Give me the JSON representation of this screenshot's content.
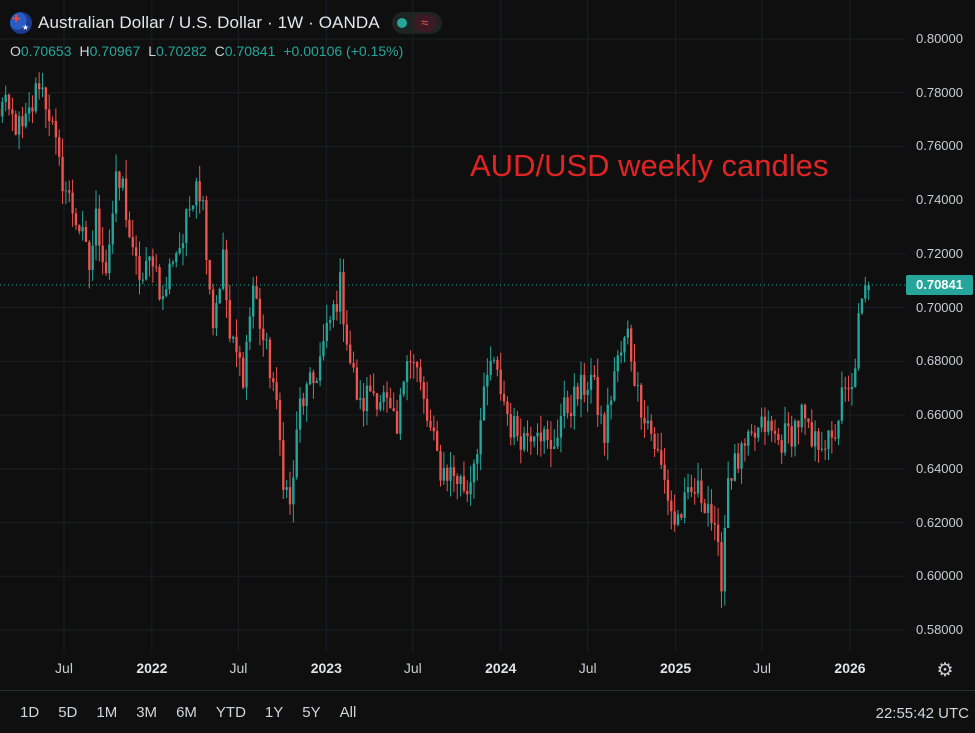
{
  "header": {
    "title": "Australian Dollar / U.S. Dollar · 1W · OANDA",
    "flag_icon": "aud-usd-flag-icon",
    "status_icon": "market-open-icon",
    "wave_icon": "wave-icon",
    "wave_glyph": "≈"
  },
  "ohlc": {
    "o_label": "O",
    "o_value": "0.70653",
    "h_label": "H",
    "h_value": "0.70967",
    "l_label": "L",
    "l_value": "0.70282",
    "c_label": "C",
    "c_value": "0.70841",
    "change": "+0.00106 (+0.15%)"
  },
  "annotation": "AUD/USD weekly candles",
  "last_price": "0.70841",
  "toolbar": {
    "ranges": [
      "1D",
      "5D",
      "1M",
      "3M",
      "6M",
      "YTD",
      "1Y",
      "5Y",
      "All"
    ],
    "clock": "22:55:42 UTC",
    "settings_icon": "gear-icon",
    "settings_glyph": "⚙"
  },
  "colors": {
    "background": "#0f0f0f",
    "up": "#26a69a",
    "down": "#ef5350",
    "grid": "#1c1f26",
    "annotation": "#e02424"
  },
  "chart_data": {
    "type": "candlestick",
    "title": "Australian Dollar / U.S. Dollar · 1W · OANDA",
    "interval": "1W",
    "y_ticks": [
      "0.80000",
      "0.78000",
      "0.76000",
      "0.74000",
      "0.72000",
      "0.70000",
      "0.68000",
      "0.66000",
      "0.64000",
      "0.62000",
      "0.60000",
      "0.58000"
    ],
    "y_range": [
      0.575,
      0.802
    ],
    "x_ticks": [
      "Jul",
      "2022",
      "Jul",
      "2023",
      "Jul",
      "2024",
      "Jul",
      "2025",
      "Jul",
      "2026"
    ],
    "x_ticks_bold": [
      "2022",
      "2023",
      "2024",
      "2025",
      "2026"
    ],
    "x_tick_dates": [
      "2021-07-01",
      "2022-01-01",
      "2022-07-01",
      "2023-01-01",
      "2023-07-01",
      "2024-01-01",
      "2024-07-01",
      "2025-01-01",
      "2025-07-01",
      "2026-01-01"
    ],
    "date_range": [
      "2021-02-08",
      "2026-02-09"
    ],
    "grid": true,
    "last_close": 0.70841,
    "close_path": [
      [
        "2021-02-08",
        0.772
      ],
      [
        "2021-02-22",
        0.775
      ],
      [
        "2021-03-15",
        0.77
      ],
      [
        "2021-04-05",
        0.765
      ],
      [
        "2021-04-26",
        0.775
      ],
      [
        "2021-05-10",
        0.785
      ],
      [
        "2021-05-31",
        0.773
      ],
      [
        "2021-06-21",
        0.752
      ],
      [
        "2021-07-12",
        0.74
      ],
      [
        "2021-08-02",
        0.73
      ],
      [
        "2021-08-23",
        0.715
      ],
      [
        "2021-09-06",
        0.733
      ],
      [
        "2021-09-27",
        0.715
      ],
      [
        "2021-10-18",
        0.745
      ],
      [
        "2021-11-01",
        0.745
      ],
      [
        "2021-11-22",
        0.718
      ],
      [
        "2021-12-13",
        0.71
      ],
      [
        "2022-01-03",
        0.72
      ],
      [
        "2022-01-24",
        0.702
      ],
      [
        "2022-02-14",
        0.72
      ],
      [
        "2022-03-07",
        0.725
      ],
      [
        "2022-04-04",
        0.75
      ],
      [
        "2022-04-18",
        0.738
      ],
      [
        "2022-05-09",
        0.695
      ],
      [
        "2022-05-30",
        0.718
      ],
      [
        "2022-06-13",
        0.688
      ],
      [
        "2022-07-11",
        0.676
      ],
      [
        "2022-08-01",
        0.708
      ],
      [
        "2022-08-22",
        0.688
      ],
      [
        "2022-09-12",
        0.672
      ],
      [
        "2022-10-03",
        0.638
      ],
      [
        "2022-10-17",
        0.625
      ],
      [
        "2022-11-07",
        0.664
      ],
      [
        "2022-12-05",
        0.672
      ],
      [
        "2023-01-02",
        0.69
      ],
      [
        "2023-01-30",
        0.708
      ],
      [
        "2023-02-20",
        0.68
      ],
      [
        "2023-03-13",
        0.662
      ],
      [
        "2023-04-03",
        0.67
      ],
      [
        "2023-05-01",
        0.666
      ],
      [
        "2023-05-29",
        0.652
      ],
      [
        "2023-06-19",
        0.686
      ],
      [
        "2023-07-10",
        0.676
      ],
      [
        "2023-07-31",
        0.658
      ],
      [
        "2023-08-28",
        0.64
      ],
      [
        "2023-09-25",
        0.638
      ],
      [
        "2023-10-23",
        0.632
      ],
      [
        "2023-11-13",
        0.65
      ],
      [
        "2023-12-11",
        0.68
      ],
      [
        "2024-01-01",
        0.67
      ],
      [
        "2024-01-22",
        0.656
      ],
      [
        "2024-02-19",
        0.652
      ],
      [
        "2024-03-18",
        0.658
      ],
      [
        "2024-04-15",
        0.645
      ],
      [
        "2024-05-06",
        0.66
      ],
      [
        "2024-06-03",
        0.666
      ],
      [
        "2024-07-08",
        0.674
      ],
      [
        "2024-08-05",
        0.652
      ],
      [
        "2024-08-26",
        0.676
      ],
      [
        "2024-09-23",
        0.69
      ],
      [
        "2024-10-14",
        0.668
      ],
      [
        "2024-11-04",
        0.658
      ],
      [
        "2024-12-02",
        0.64
      ],
      [
        "2024-12-30",
        0.62
      ],
      [
        "2025-01-20",
        0.626
      ],
      [
        "2025-02-10",
        0.632
      ],
      [
        "2025-03-10",
        0.628
      ],
      [
        "2025-04-07",
        0.6
      ],
      [
        "2025-04-21",
        0.638
      ],
      [
        "2025-05-19",
        0.644
      ],
      [
        "2025-06-16",
        0.652
      ],
      [
        "2025-07-07",
        0.656
      ],
      [
        "2025-08-04",
        0.65
      ],
      [
        "2025-09-01",
        0.654
      ],
      [
        "2025-09-22",
        0.66
      ],
      [
        "2025-10-13",
        0.648
      ],
      [
        "2025-11-03",
        0.652
      ],
      [
        "2025-11-24",
        0.648
      ],
      [
        "2025-12-15",
        0.666
      ],
      [
        "2026-01-05",
        0.668
      ],
      [
        "2026-01-19",
        0.694
      ],
      [
        "2026-02-02",
        0.705
      ],
      [
        "2026-02-09",
        0.70841
      ]
    ],
    "last_candle": {
      "open": 0.70653,
      "high": 0.70967,
      "low": 0.70282,
      "close": 0.70841
    }
  }
}
